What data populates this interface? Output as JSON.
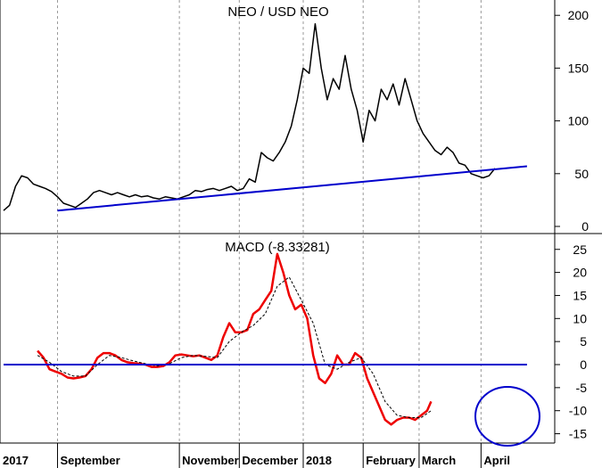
{
  "chart_data": [
    {
      "type": "line",
      "title": "NEO / USD NEO",
      "ylim": [
        -10,
        210
      ],
      "yticks": [
        0,
        50,
        100,
        150,
        200
      ],
      "x_month_labels": [
        "2017",
        "September",
        "November",
        "December",
        "2018",
        "February",
        "March",
        "April"
      ],
      "x_month_positions_days": [
        0,
        27,
        88,
        118,
        150,
        180,
        208,
        239
      ],
      "grid": "vertical dashed at month starts",
      "series": [
        {
          "color": "#000000",
          "points": [
            [
              0,
              15
            ],
            [
              3,
              20
            ],
            [
              6,
              38
            ],
            [
              9,
              48
            ],
            [
              12,
              46
            ],
            [
              15,
              40
            ],
            [
              18,
              38
            ],
            [
              21,
              36
            ],
            [
              24,
              33
            ],
            [
              27,
              28
            ],
            [
              30,
              22
            ],
            [
              33,
              20
            ],
            [
              36,
              18
            ],
            [
              39,
              22
            ],
            [
              42,
              26
            ],
            [
              45,
              32
            ],
            [
              48,
              34
            ],
            [
              51,
              32
            ],
            [
              54,
              30
            ],
            [
              57,
              32
            ],
            [
              60,
              30
            ],
            [
              63,
              28
            ],
            [
              66,
              30
            ],
            [
              69,
              28
            ],
            [
              72,
              29
            ],
            [
              75,
              27
            ],
            [
              78,
              26
            ],
            [
              81,
              28
            ],
            [
              84,
              27
            ],
            [
              87,
              26
            ],
            [
              90,
              28
            ],
            [
              93,
              30
            ],
            [
              96,
              34
            ],
            [
              99,
              33
            ],
            [
              102,
              35
            ],
            [
              105,
              36
            ],
            [
              108,
              34
            ],
            [
              111,
              36
            ],
            [
              114,
              38
            ],
            [
              117,
              34
            ],
            [
              120,
              36
            ],
            [
              123,
              45
            ],
            [
              126,
              42
            ],
            [
              129,
              70
            ],
            [
              132,
              65
            ],
            [
              135,
              62
            ],
            [
              138,
              70
            ],
            [
              141,
              80
            ],
            [
              144,
              95
            ],
            [
              147,
              120
            ],
            [
              150,
              150
            ],
            [
              153,
              145
            ],
            [
              156,
              192
            ],
            [
              159,
              150
            ],
            [
              162,
              120
            ],
            [
              165,
              140
            ],
            [
              168,
              130
            ],
            [
              171,
              162
            ],
            [
              174,
              130
            ],
            [
              177,
              110
            ],
            [
              180,
              80
            ],
            [
              183,
              110
            ],
            [
              186,
              100
            ],
            [
              189,
              130
            ],
            [
              192,
              120
            ],
            [
              195,
              135
            ],
            [
              198,
              115
            ],
            [
              201,
              140
            ],
            [
              204,
              120
            ],
            [
              207,
              100
            ],
            [
              210,
              88
            ],
            [
              213,
              80
            ],
            [
              216,
              72
            ],
            [
              219,
              68
            ],
            [
              222,
              75
            ],
            [
              225,
              70
            ],
            [
              228,
              60
            ],
            [
              231,
              58
            ],
            [
              234,
              50
            ],
            [
              237,
              48
            ],
            [
              240,
              46
            ],
            [
              243,
              48
            ],
            [
              246,
              55
            ]
          ]
        },
        {
          "color": "#0000cc",
          "points": [
            [
              27,
              15
            ],
            [
              262,
              57
            ]
          ]
        }
      ]
    },
    {
      "type": "line",
      "title": "MACD (-8.33281)",
      "ylim": [
        -17,
        27
      ],
      "yticks": [
        25,
        20,
        15,
        10,
        5,
        0,
        -5,
        -10,
        -15
      ],
      "series": [
        {
          "color": "#ee0000",
          "points": [
            [
              17,
              3
            ],
            [
              20,
              1.5
            ],
            [
              23,
              -1
            ],
            [
              26,
              -1.5
            ],
            [
              29,
              -2
            ],
            [
              32,
              -2.8
            ],
            [
              35,
              -3
            ],
            [
              38,
              -2.8
            ],
            [
              41,
              -2.5
            ],
            [
              44,
              -1
            ],
            [
              47,
              1.5
            ],
            [
              50,
              2.5
            ],
            [
              53,
              2.5
            ],
            [
              56,
              2
            ],
            [
              59,
              1
            ],
            [
              62,
              0.5
            ],
            [
              65,
              0.3
            ],
            [
              68,
              0.2
            ],
            [
              71,
              0
            ],
            [
              74,
              -0.5
            ],
            [
              77,
              -0.5
            ],
            [
              80,
              -0.3
            ],
            [
              83,
              0.5
            ],
            [
              86,
              2
            ],
            [
              89,
              2.2
            ],
            [
              92,
              2
            ],
            [
              95,
              1.8
            ],
            [
              98,
              2
            ],
            [
              101,
              1.5
            ],
            [
              104,
              1
            ],
            [
              107,
              2
            ],
            [
              110,
              6
            ],
            [
              113,
              9
            ],
            [
              116,
              7
            ],
            [
              119,
              7
            ],
            [
              122,
              7.5
            ],
            [
              125,
              11
            ],
            [
              128,
              12
            ],
            [
              131,
              14
            ],
            [
              134,
              16
            ],
            [
              137,
              24
            ],
            [
              140,
              20
            ],
            [
              143,
              15
            ],
            [
              146,
              12
            ],
            [
              149,
              13
            ],
            [
              152,
              10
            ],
            [
              155,
              2
            ],
            [
              158,
              -3
            ],
            [
              161,
              -4
            ],
            [
              164,
              -2
            ],
            [
              167,
              2
            ],
            [
              170,
              0
            ],
            [
              173,
              0
            ],
            [
              176,
              2.5
            ],
            [
              179,
              1.5
            ],
            [
              182,
              -3
            ],
            [
              185,
              -6
            ],
            [
              188,
              -9
            ],
            [
              191,
              -12
            ],
            [
              194,
              -13
            ],
            [
              197,
              -12
            ],
            [
              200,
              -11.5
            ],
            [
              203,
              -11.5
            ],
            [
              206,
              -12
            ],
            [
              209,
              -11
            ],
            [
              212,
              -10
            ],
            [
              214,
              -8
            ]
          ]
        },
        {
          "color": "#000000",
          "points": [
            [
              17,
              2
            ],
            [
              23,
              0.5
            ],
            [
              29,
              -1.5
            ],
            [
              35,
              -2.5
            ],
            [
              41,
              -2.5
            ],
            [
              47,
              0
            ],
            [
              53,
              2
            ],
            [
              59,
              1.5
            ],
            [
              65,
              0.8
            ],
            [
              71,
              0.2
            ],
            [
              77,
              -0.3
            ],
            [
              83,
              0.2
            ],
            [
              89,
              1.5
            ],
            [
              95,
              2
            ],
            [
              101,
              1.8
            ],
            [
              107,
              1.5
            ],
            [
              113,
              5
            ],
            [
              119,
              7
            ],
            [
              125,
              8.5
            ],
            [
              131,
              11
            ],
            [
              137,
              17
            ],
            [
              143,
              19
            ],
            [
              149,
              14
            ],
            [
              155,
              9
            ],
            [
              161,
              0
            ],
            [
              167,
              -1
            ],
            [
              173,
              0.5
            ],
            [
              179,
              1.5
            ],
            [
              185,
              -2
            ],
            [
              191,
              -8
            ],
            [
              197,
              -11
            ],
            [
              203,
              -11.5
            ],
            [
              209,
              -11.5
            ],
            [
              214,
              -10
            ]
          ]
        },
        {
          "color": "#0000cc",
          "points": [
            [
              0,
              0
            ],
            [
              262,
              0
            ]
          ]
        }
      ]
    }
  ]
}
